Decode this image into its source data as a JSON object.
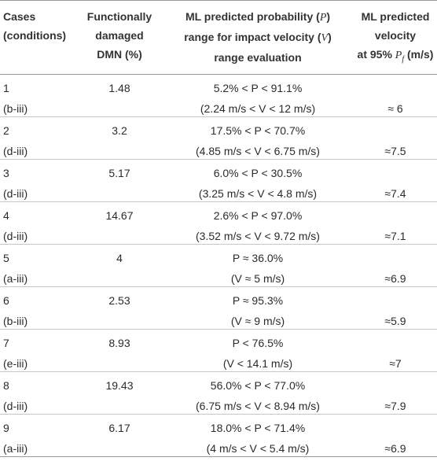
{
  "header": {
    "col1": [
      "Cases",
      "(conditions)"
    ],
    "col2": [
      "Functionally",
      "damaged",
      "DMN (%)"
    ],
    "col3": [
      "ML predicted probability (",
      "P",
      ")",
      "range for impact velocity (",
      "V",
      ")",
      "range evaluation"
    ],
    "col4": [
      "ML predicted",
      "velocity",
      "at 95% ",
      "P",
      "f",
      " (m/s)"
    ]
  },
  "rows": [
    {
      "case": "1",
      "cond": "(b-iii)",
      "dmn": "1.48",
      "prob": "5.2% < P < 91.1%",
      "vrange": "(2.24 m/s < V < 12 m/s)",
      "pred": "≈ 6"
    },
    {
      "case": "2",
      "cond": "(d-iii)",
      "dmn": "3.2",
      "prob": "17.5% < P < 70.7%",
      "vrange": "(4.85 m/s < V < 6.75 m/s)",
      "pred": "≈7.5"
    },
    {
      "case": "3",
      "cond": "(d-iii)",
      "dmn": "5.17",
      "prob": "6.0% < P < 30.5%",
      "vrange": "(3.25 m/s < V < 4.8 m/s)",
      "pred": "≈7.4"
    },
    {
      "case": "4",
      "cond": "(d-iii)",
      "dmn": "14.67",
      "prob": "2.6% < P < 97.0%",
      "vrange": "(3.52 m/s < V < 9.72 m/s)",
      "pred": "≈7.1"
    },
    {
      "case": "5",
      "cond": "(a-iii)",
      "dmn": "4",
      "prob": "P ≈ 36.0%",
      "vrange": "(V ≈ 5 m/s)",
      "pred": "≈6.9"
    },
    {
      "case": "6",
      "cond": "(b-iii)",
      "dmn": "2.53",
      "prob": "P ≈ 95.3%",
      "vrange": "(V ≈ 9 m/s)",
      "pred": "≈5.9"
    },
    {
      "case": "7",
      "cond": "(e-iii)",
      "dmn": "8.93",
      "prob": "P < 76.5%",
      "vrange": "(V < 14.1 m/s)",
      "pred": "≈7"
    },
    {
      "case": "8",
      "cond": "(d-iii)",
      "dmn": "19.43",
      "prob": "56.0% < P < 77.0%",
      "vrange": "(6.75 m/s < V < 8.94 m/s)",
      "pred": "≈7.9"
    },
    {
      "case": "9",
      "cond": "(a-iii)",
      "dmn": "6.17",
      "prob": "18.0% < P < 71.4%",
      "vrange": "(4 m/s < V < 5.4 m/s)",
      "pred": "≈6.9"
    }
  ]
}
